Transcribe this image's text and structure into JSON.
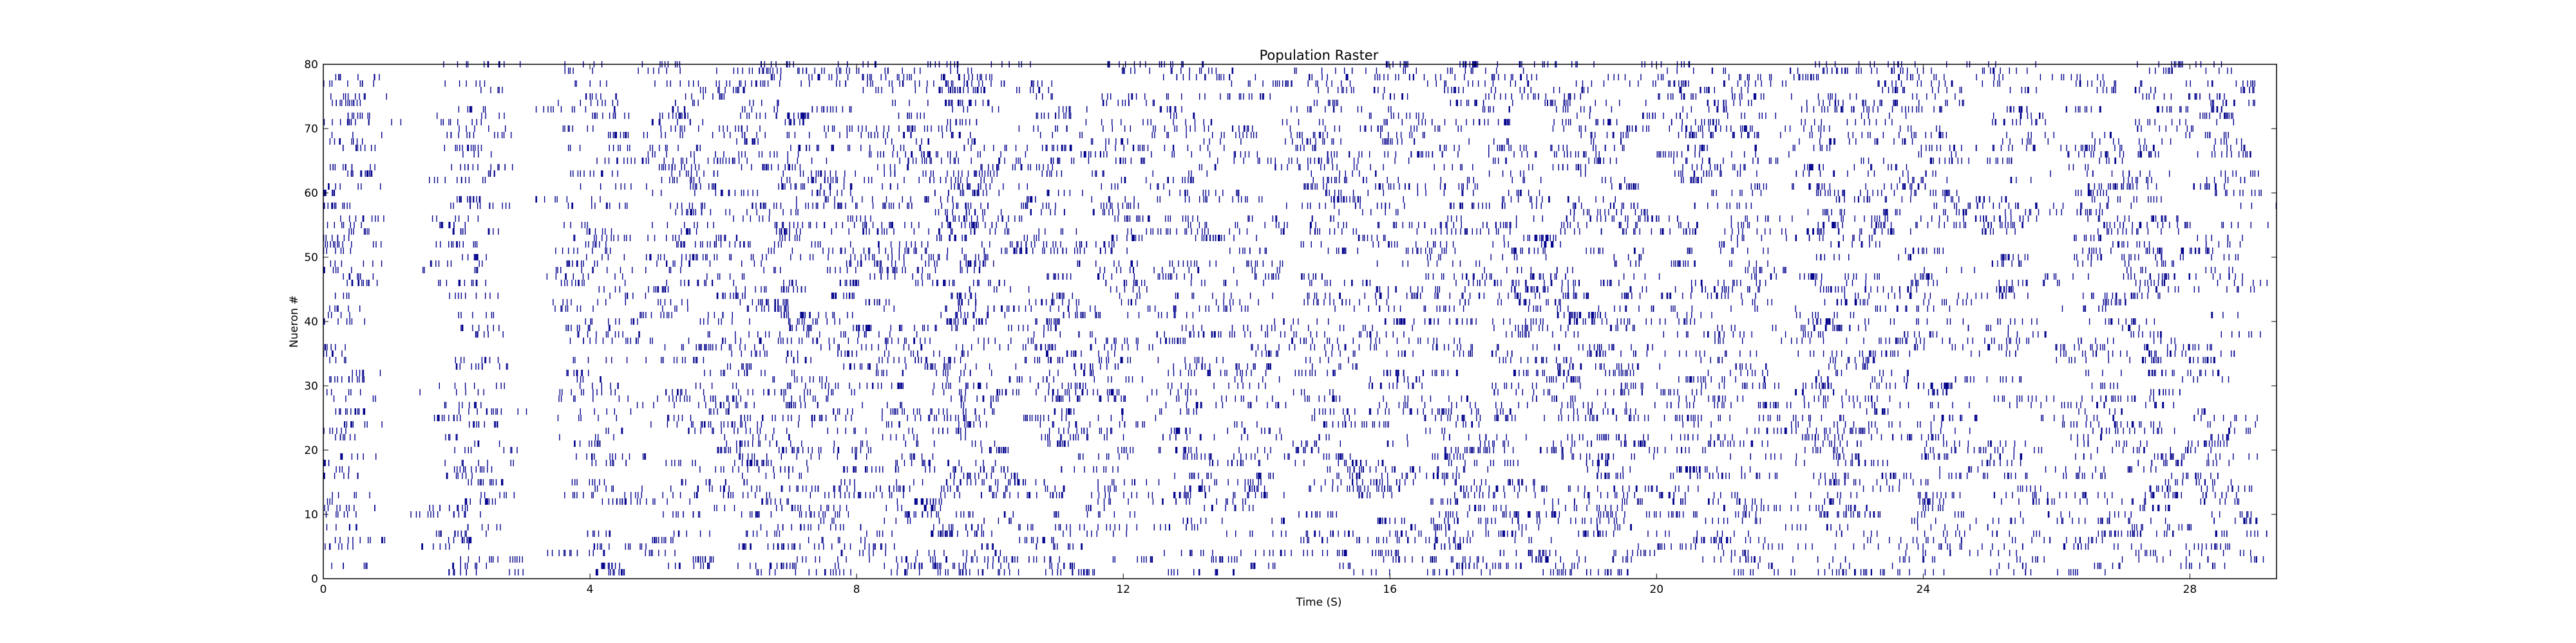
{
  "chart_data": {
    "type": "scatter",
    "marker": "vertical-tick",
    "title": "Population Raster",
    "xlabel": "Time (S)",
    "ylabel": "Nueron #",
    "xlim": [
      0,
      29.3
    ],
    "ylim": [
      0,
      80
    ],
    "xticks": [
      0,
      4,
      8,
      12,
      16,
      20,
      24,
      28
    ],
    "xtick_labels": [
      "0",
      "4",
      "8",
      "12",
      "16",
      "20",
      "24",
      "28"
    ],
    "yticks": [
      0,
      10,
      20,
      30,
      40,
      50,
      60,
      70,
      80
    ],
    "ytick_labels": [
      "0",
      "10",
      "20",
      "30",
      "40",
      "50",
      "60",
      "70",
      "80"
    ],
    "grid": false,
    "legend": "none",
    "spike_color": "#00008b",
    "series": [
      {
        "rows": 80,
        "burst_times": [
          0.35,
          2.15,
          4.1,
          5.35,
          6.3,
          7.05,
          7.8,
          8.65,
          9.35,
          10.0,
          10.95,
          11.85,
          13.0,
          13.85,
          15.1,
          16.0,
          16.9,
          17.75,
          18.65,
          19.45,
          20.45,
          21.35,
          22.5,
          23.25,
          24.2,
          25.35,
          26.55,
          27.4,
          28.45
        ]
      }
    ]
  }
}
